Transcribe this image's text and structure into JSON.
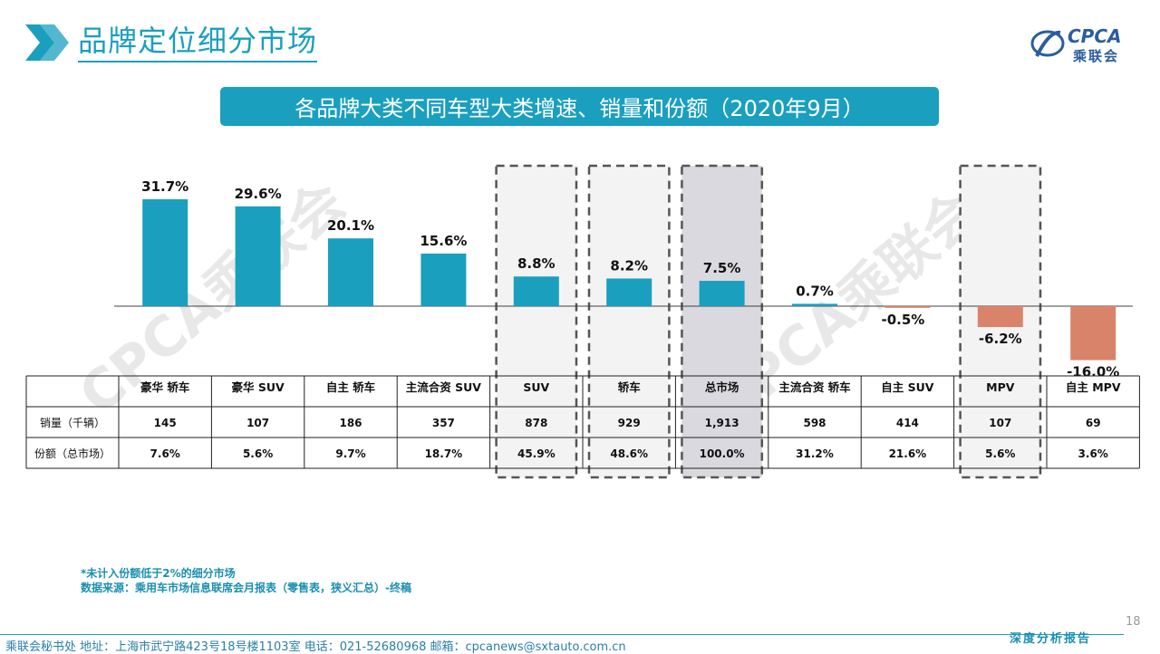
{
  "slide": {
    "title": "品牌定位细分市场",
    "subtitle": "各品牌大类不同车型大类增速、销量和份额（2020年9月）",
    "logo_text": "CPCA",
    "logo_sub": "乘联会",
    "watermark": "CPCA乘联会",
    "note_1": "*未计入份额低于2%的细分市场",
    "note_2": "数据来源：乘用车市场信息联席会月报表（零售表，狭义汇总）-终稿",
    "page_number": "18",
    "footer": "乘联会秘书处   地址：上海市武宁路423号18号楼1103室   电话：021-52680968   邮箱：cpcanews@sxtauto.com.cn",
    "footer_right": "深度分析报告"
  },
  "colors": {
    "positive": "#1a9fbf",
    "negative": "#d9846a",
    "accent": "#1a9fbf",
    "highlight": "#d9d9df"
  },
  "chart_data": {
    "type": "bar",
    "categories": [
      "豪华 轿车",
      "豪华 SUV",
      "自主 轿车",
      "主流合资 SUV",
      "SUV",
      "轿车",
      "总市场",
      "主流合资 轿车",
      "自主 SUV",
      "MPV",
      "自主 MPV"
    ],
    "values": [
      31.7,
      29.6,
      20.1,
      15.6,
      8.8,
      8.2,
      7.5,
      0.7,
      -0.5,
      -6.2,
      -16.0
    ],
    "value_labels": [
      "31.7%",
      "29.6%",
      "20.1%",
      "15.6%",
      "8.8%",
      "8.2%",
      "7.5%",
      "0.7%",
      "-0.5%",
      "-6.2%",
      "-16.0%"
    ],
    "unit": "%",
    "ylim": [
      -16.0,
      31.7
    ],
    "highlighted_categories": [
      "SUV",
      "轿车",
      "总市场",
      "MPV"
    ],
    "shaded_category": "总市场",
    "table": {
      "row_headers": [
        "销量（千辆）",
        "份额（总市场）"
      ],
      "sales": [
        "145",
        "107",
        "186",
        "357",
        "878",
        "929",
        "1,913",
        "598",
        "414",
        "107",
        "69"
      ],
      "shares": [
        "7.6%",
        "5.6%",
        "9.7%",
        "18.7%",
        "45.9%",
        "48.6%",
        "100.0%",
        "31.2%",
        "21.6%",
        "5.6%",
        "3.6%"
      ]
    }
  }
}
